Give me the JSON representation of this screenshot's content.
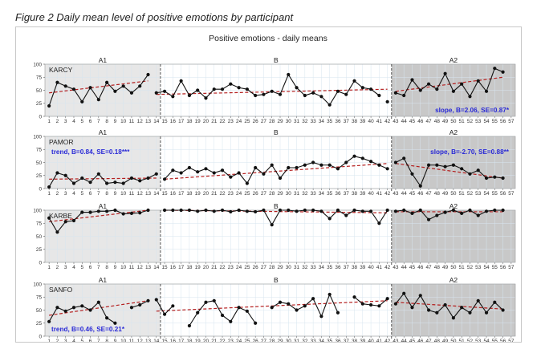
{
  "figure": {
    "caption": "Figure 2 Daily mean level of positive emotions by participant"
  },
  "chart_data": {
    "type": "line",
    "title": "Positive emotions - daily means",
    "xlabel": "",
    "ylabel": "",
    "x_ticks": [
      1,
      2,
      3,
      4,
      5,
      6,
      7,
      8,
      9,
      10,
      11,
      12,
      13,
      14,
      15,
      16,
      17,
      18,
      19,
      20,
      21,
      22,
      23,
      24,
      25,
      26,
      27,
      28,
      29,
      30,
      31,
      32,
      33,
      34,
      35,
      36,
      37,
      38,
      39,
      40,
      41,
      42,
      43,
      44,
      45,
      46,
      47,
      48,
      49,
      50,
      51,
      52,
      53,
      54,
      55,
      56,
      57
    ],
    "y_ticks": [
      0,
      25,
      50,
      75,
      100
    ],
    "ylim": [
      0,
      100
    ],
    "xlim": [
      1,
      57
    ],
    "phases": [
      {
        "label": "A1",
        "start": 1,
        "end": 14
      },
      {
        "label": "B",
        "start": 15,
        "end": 42
      },
      {
        "label": "A2",
        "start": 43,
        "end": 57
      }
    ],
    "colors": {
      "series": "#111111",
      "trend": "#b41e1e",
      "annotation": "#2a2ad6",
      "a1_shade": "#e7e7e7",
      "a2_shade": "#c8c8c8",
      "grid": "#d7e5ef",
      "phase_line": "#444444"
    },
    "panels": [
      {
        "participant": "KARCY",
        "annotations": [
          {
            "text": "slope, B=2.06, SE=0.87*",
            "phase": "A2"
          }
        ],
        "segments": [
          {
            "x": [
              1,
              2,
              3,
              4,
              5,
              6,
              7,
              8,
              9,
              10,
              11,
              12,
              13
            ],
            "y": [
              20,
              65,
              58,
              52,
              28,
              55,
              32,
              65,
              48,
              58,
              45,
              58,
              80
            ]
          },
          {
            "x": [
              14,
              15,
              16,
              17,
              18,
              19,
              20,
              21,
              22,
              23,
              24,
              25,
              26,
              27,
              28,
              29,
              30,
              31,
              32,
              33,
              34,
              35,
              36,
              37,
              38,
              39,
              40,
              41
            ],
            "y": [
              45,
              48,
              38,
              68,
              40,
              50,
              35,
              52,
              52,
              62,
              55,
              52,
              40,
              42,
              48,
              42,
              80,
              55,
              40,
              45,
              38,
              22,
              48,
              42,
              68,
              55,
              52,
              40
            ]
          },
          {
            "x": [
              42
            ],
            "y": [
              28
            ]
          },
          {
            "x": [
              43,
              44,
              45,
              46,
              47,
              48,
              49,
              50,
              51,
              52,
              53,
              54,
              55,
              56
            ],
            "y": [
              45,
              40,
              70,
              50,
              62,
              52,
              82,
              48,
              62,
              38,
              68,
              48,
              92,
              85
            ]
          }
        ],
        "trends": [
          {
            "x": [
              1,
              13
            ],
            "y": [
              45,
              68
            ]
          },
          {
            "x": [
              14,
              42
            ],
            "y": [
              42,
              52
            ]
          },
          {
            "x": [
              43,
              56
            ],
            "y": [
              48,
              75
            ]
          }
        ]
      },
      {
        "participant": "PAMOR",
        "annotations": [
          {
            "text": "trend, B=0.84, SE=0.18***",
            "phase": "A1"
          },
          {
            "text": "slope, B=-2.70, SE=0.88**",
            "phase": "A2"
          }
        ],
        "segments": [
          {
            "x": [
              1,
              2,
              3,
              4,
              5,
              6,
              7,
              8,
              9,
              10,
              11,
              12,
              13,
              14
            ],
            "y": [
              3,
              30,
              25,
              10,
              20,
              12,
              28,
              10,
              12,
              10,
              20,
              15,
              20,
              28
            ]
          },
          {
            "x": [
              15,
              16,
              17,
              18,
              19,
              20,
              21,
              22,
              23,
              24,
              25,
              26,
              27,
              28,
              29,
              30,
              31,
              32,
              33,
              34,
              35,
              36,
              37,
              38,
              39,
              40,
              41,
              42
            ],
            "y": [
              18,
              35,
              30,
              40,
              32,
              38,
              30,
              35,
              22,
              30,
              10,
              40,
              28,
              45,
              20,
              40,
              40,
              45,
              50,
              45,
              45,
              38,
              50,
              62,
              58,
              52,
              45,
              38
            ]
          },
          {
            "x": [
              43,
              44,
              45,
              46,
              47,
              48,
              49,
              50,
              51,
              52,
              53,
              54,
              55,
              56
            ],
            "y": [
              50,
              58,
              28,
              5,
              45,
              45,
              42,
              45,
              38,
              28,
              35,
              20,
              22,
              20
            ]
          }
        ],
        "trends": [
          {
            "x": [
              1,
              14
            ],
            "y": [
              18,
              20
            ]
          },
          {
            "x": [
              15,
              42
            ],
            "y": [
              18,
              48
            ]
          },
          {
            "x": [
              43,
              56
            ],
            "y": [
              48,
              20
            ]
          }
        ]
      },
      {
        "participant": "KARBE",
        "annotations": [],
        "segments": [
          {
            "x": [
              1,
              2,
              3,
              4,
              5,
              6,
              7,
              8,
              9,
              10,
              11,
              12,
              13
            ],
            "y": [
              85,
              58,
              78,
              80,
              96,
              96,
              98,
              98,
              100,
              93,
              94,
              95,
              100
            ]
          },
          {
            "x": [
              15,
              16,
              17,
              18,
              19,
              20,
              21,
              22,
              23,
              24,
              25,
              26,
              27,
              28,
              29,
              30,
              31,
              32,
              33,
              34,
              35,
              36,
              37,
              38,
              39,
              40,
              41,
              42
            ],
            "y": [
              100,
              100,
              100,
              100,
              98,
              100,
              98,
              100,
              97,
              100,
              98,
              97,
              100,
              72,
              100,
              100,
              98,
              100,
              100,
              98,
              84,
              100,
              90,
              100,
              98,
              98,
              75,
              100
            ]
          },
          {
            "x": [
              43,
              44,
              45,
              46,
              47,
              48,
              49,
              50,
              51,
              52,
              53,
              54,
              55,
              56
            ],
            "y": [
              98,
              100,
              94,
              100,
              82,
              90,
              96,
              100,
              94,
              100,
              90,
              98,
              100,
              100
            ]
          }
        ],
        "trends": [
          {
            "x": [
              1,
              13
            ],
            "y": [
              78,
              100
            ]
          },
          {
            "x": [
              15,
              42
            ],
            "y": [
              100,
              95
            ]
          },
          {
            "x": [
              43,
              56
            ],
            "y": [
              97,
              97
            ]
          }
        ]
      },
      {
        "participant": "SANFO",
        "annotations": [
          {
            "text": "trend, B=0.46, SE=0.21*",
            "phase": "A1"
          }
        ],
        "segments": [
          {
            "x": [
              1,
              2,
              3,
              4,
              5,
              6,
              7,
              8,
              9
            ],
            "y": [
              28,
              55,
              48,
              55,
              58,
              50,
              65,
              35,
              25
            ]
          },
          {
            "x": [
              11,
              12,
              13
            ],
            "y": [
              55,
              60,
              68
            ]
          },
          {
            "x": [
              14,
              15,
              16
            ],
            "y": [
              70,
              42,
              58
            ]
          },
          {
            "x": [
              18,
              19,
              20,
              21,
              22,
              23,
              24,
              25,
              26
            ],
            "y": [
              20,
              45,
              65,
              68,
              40,
              28,
              55,
              48,
              25
            ]
          },
          {
            "x": [
              28,
              29,
              30,
              31,
              32,
              33,
              34,
              35,
              36
            ],
            "y": [
              55,
              65,
              62,
              50,
              58,
              72,
              38,
              80,
              45
            ]
          },
          {
            "x": [
              38,
              39,
              40,
              41,
              42
            ],
            "y": [
              75,
              62,
              60,
              58,
              72
            ]
          },
          {
            "x": [
              43,
              44,
              45,
              46,
              47,
              48,
              49,
              50,
              51,
              52,
              53,
              54,
              55,
              56
            ],
            "y": [
              62,
              82,
              55,
              78,
              50,
              45,
              60,
              35,
              55,
              45,
              68,
              45,
              65,
              50
            ]
          }
        ],
        "trends": [
          {
            "x": [
              1,
              13
            ],
            "y": [
              40,
              68
            ]
          },
          {
            "x": [
              14,
              42
            ],
            "y": [
              48,
              68
            ]
          },
          {
            "x": [
              43,
              56
            ],
            "y": [
              65,
              52
            ]
          }
        ]
      }
    ]
  }
}
